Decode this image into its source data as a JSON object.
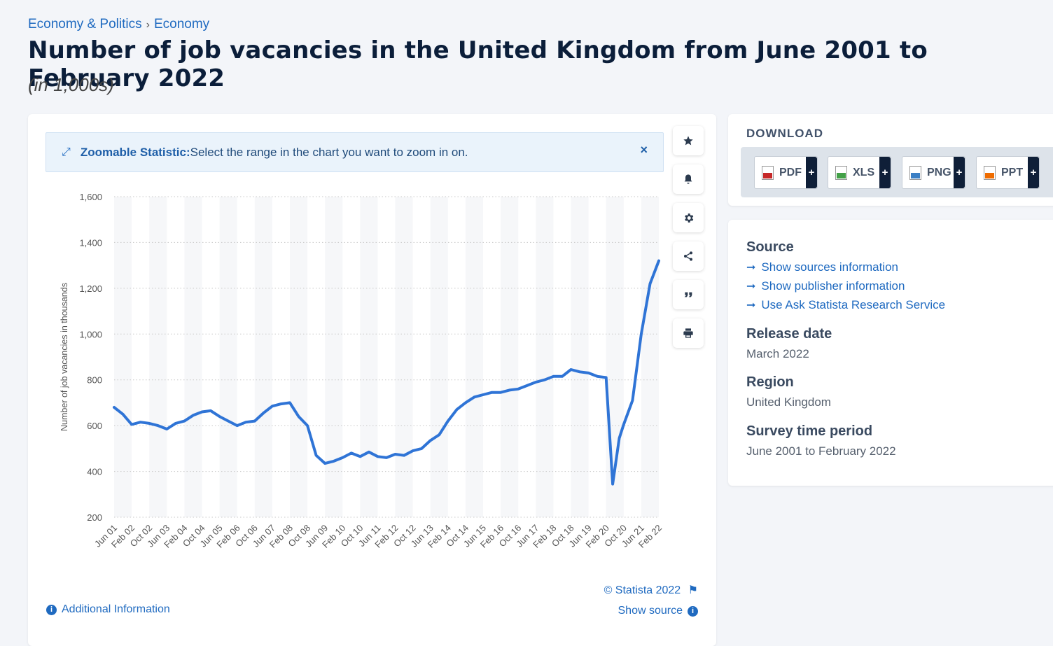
{
  "breadcrumb": {
    "parent": "Economy & Politics",
    "current": "Economy",
    "separator": "›"
  },
  "title": "Number of job vacancies in the United Kingdom from June 2001 to February 2022",
  "subtitle": "(in 1,000s)",
  "zoom_banner": {
    "label": "Zoomable Statistic:",
    "text": "Select the range in the chart you want to zoom in on.",
    "close": "×"
  },
  "tools": [
    "star-icon",
    "bell-icon",
    "gear-icon",
    "share-icon",
    "quote-icon",
    "print-icon"
  ],
  "footer": {
    "copyright": "© Statista 2022",
    "additional_info": "Additional Information",
    "show_source": "Show source"
  },
  "download": {
    "title": "DOWNLOAD",
    "buttons": [
      {
        "label": "PDF",
        "icon": "pdf-file-icon",
        "color": "#c62828"
      },
      {
        "label": "XLS",
        "icon": "xls-file-icon",
        "color": "#43a047"
      },
      {
        "label": "PNG",
        "icon": "png-file-icon",
        "color": "#3b7fc4"
      },
      {
        "label": "PPT",
        "icon": "ppt-file-icon",
        "color": "#ef6c00"
      }
    ]
  },
  "meta": {
    "source_heading": "Source",
    "links": [
      "Show sources information",
      "Show publisher information",
      "Use Ask Statista Research Service"
    ],
    "release_heading": "Release date",
    "release_value": "March 2022",
    "region_heading": "Region",
    "region_value": "United Kingdom",
    "period_heading": "Survey time period",
    "period_value": "June 2001 to February 2022"
  },
  "colors": {
    "line": "#2f74d6",
    "accent": "#1f6ac0"
  },
  "chart_data": {
    "type": "line",
    "ylabel": "Number of job vacancies in thousands",
    "ylim": [
      200,
      1600
    ],
    "yticks": [
      200,
      400,
      600,
      800,
      1000,
      1200,
      1400,
      1600
    ],
    "ytick_labels": [
      "200",
      "400",
      "600",
      "800",
      "1,000",
      "1,200",
      "1,400",
      "1,600"
    ],
    "grid": "horizontal dotted",
    "xtick_labels": [
      "Jun 01",
      "Feb 02",
      "Oct 02",
      "Jun 03",
      "Feb 04",
      "Oct 04",
      "Jun 05",
      "Feb 06",
      "Oct 06",
      "Jun 07",
      "Feb 08",
      "Oct 08",
      "Jun 09",
      "Feb 10",
      "Oct 10",
      "Jun 11",
      "Feb 12",
      "Oct 12",
      "Jun 13",
      "Feb 14",
      "Oct 14",
      "Jun 15",
      "Feb 16",
      "Oct 16",
      "Jun 17",
      "Feb 18",
      "Oct 18",
      "Jun 19",
      "Feb 20",
      "Oct 20",
      "Jun 21",
      "Feb 22"
    ],
    "series": [
      {
        "x": [
          "Jun 01",
          "Oct 01",
          "Feb 02",
          "Jun 02",
          "Oct 02",
          "Feb 03",
          "Jun 03",
          "Oct 03",
          "Feb 04",
          "Jun 04",
          "Oct 04",
          "Feb 05",
          "Jun 05",
          "Oct 05",
          "Feb 06",
          "Jun 06",
          "Oct 06",
          "Feb 07",
          "Jun 07",
          "Oct 07",
          "Feb 08",
          "Jun 08",
          "Oct 08",
          "Feb 09",
          "Jun 09",
          "Oct 09",
          "Feb 10",
          "Jun 10",
          "Oct 10",
          "Feb 11",
          "Jun 11",
          "Oct 11",
          "Feb 12",
          "Jun 12",
          "Oct 12",
          "Feb 13",
          "Jun 13",
          "Oct 13",
          "Feb 14",
          "Jun 14",
          "Oct 14",
          "Feb 15",
          "Jun 15",
          "Oct 15",
          "Feb 16",
          "Jun 16",
          "Oct 16",
          "Feb 17",
          "Jun 17",
          "Oct 17",
          "Feb 18",
          "Jun 18",
          "Oct 18",
          "Feb 19",
          "Jun 19",
          "Oct 19",
          "Feb 20",
          "May 20",
          "Aug 20",
          "Oct 20",
          "Feb 21",
          "Jun 21",
          "Oct 21",
          "Feb 22"
        ],
        "values": [
          680,
          650,
          605,
          615,
          610,
          600,
          585,
          610,
          620,
          645,
          660,
          665,
          640,
          620,
          600,
          615,
          620,
          655,
          685,
          695,
          700,
          640,
          600,
          470,
          435,
          445,
          460,
          480,
          465,
          485,
          465,
          460,
          475,
          470,
          490,
          500,
          535,
          560,
          620,
          670,
          700,
          725,
          735,
          745,
          745,
          755,
          760,
          775,
          790,
          800,
          815,
          815,
          845,
          835,
          830,
          815,
          810,
          345,
          545,
          605,
          710,
          1000,
          1220,
          1320
        ]
      }
    ]
  }
}
